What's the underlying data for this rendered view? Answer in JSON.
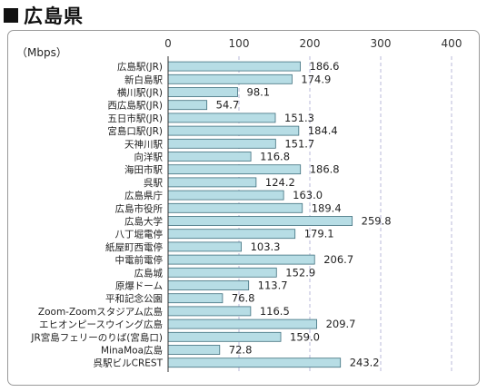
{
  "page": {
    "title": "広島県"
  },
  "chart_data": {
    "type": "bar",
    "orientation": "horizontal",
    "unit_label": "（Mbps）",
    "xlim": [
      0,
      400
    ],
    "xticks": [
      0,
      100,
      200,
      300,
      400
    ],
    "grid": "vertical dashed",
    "categories": [
      "広島駅(JR)",
      "新白島駅",
      "横川駅(JR)",
      "西広島駅(JR)",
      "五日市駅(JR)",
      "宮島口駅(JR)",
      "天神川駅",
      "向洋駅",
      "海田市駅",
      "呉駅",
      "広島県庁",
      "広島市役所",
      "広島大学",
      "八丁堀電停",
      "紙屋町西電停",
      "中電前電停",
      "広島城",
      "原爆ドーム",
      "平和記念公園",
      "Zoom-Zoomスタジアム広島",
      "エヒオンピースウイング広島",
      "JR宮島フェリーのりば(宮島口)",
      "MinaMoa広島",
      "呉駅ビルCREST"
    ],
    "values": [
      186.6,
      174.9,
      98.1,
      54.7,
      151.3,
      184.4,
      151.7,
      116.8,
      186.8,
      124.2,
      163.0,
      189.4,
      259.8,
      179.1,
      103.3,
      206.7,
      152.9,
      113.7,
      76.8,
      116.5,
      209.7,
      159.0,
      72.8,
      243.2
    ],
    "value_labels": [
      "186.6",
      "174.9",
      "98.1",
      "54.7",
      "151.3",
      "184.4",
      "151.7",
      "116.8",
      "186.8",
      "124.2",
      "163.0",
      "189.4",
      "259.8",
      "179.1",
      "103.3",
      "206.7",
      "152.9",
      "113.7",
      "76.8",
      "116.5",
      "209.7",
      "159.0",
      "72.8",
      "243.2"
    ],
    "colors": {
      "bar_fill": "#b7dde5",
      "bar_stroke": "#3f6f7d",
      "grid": "#b9b9d9",
      "axis": "#333333"
    }
  }
}
